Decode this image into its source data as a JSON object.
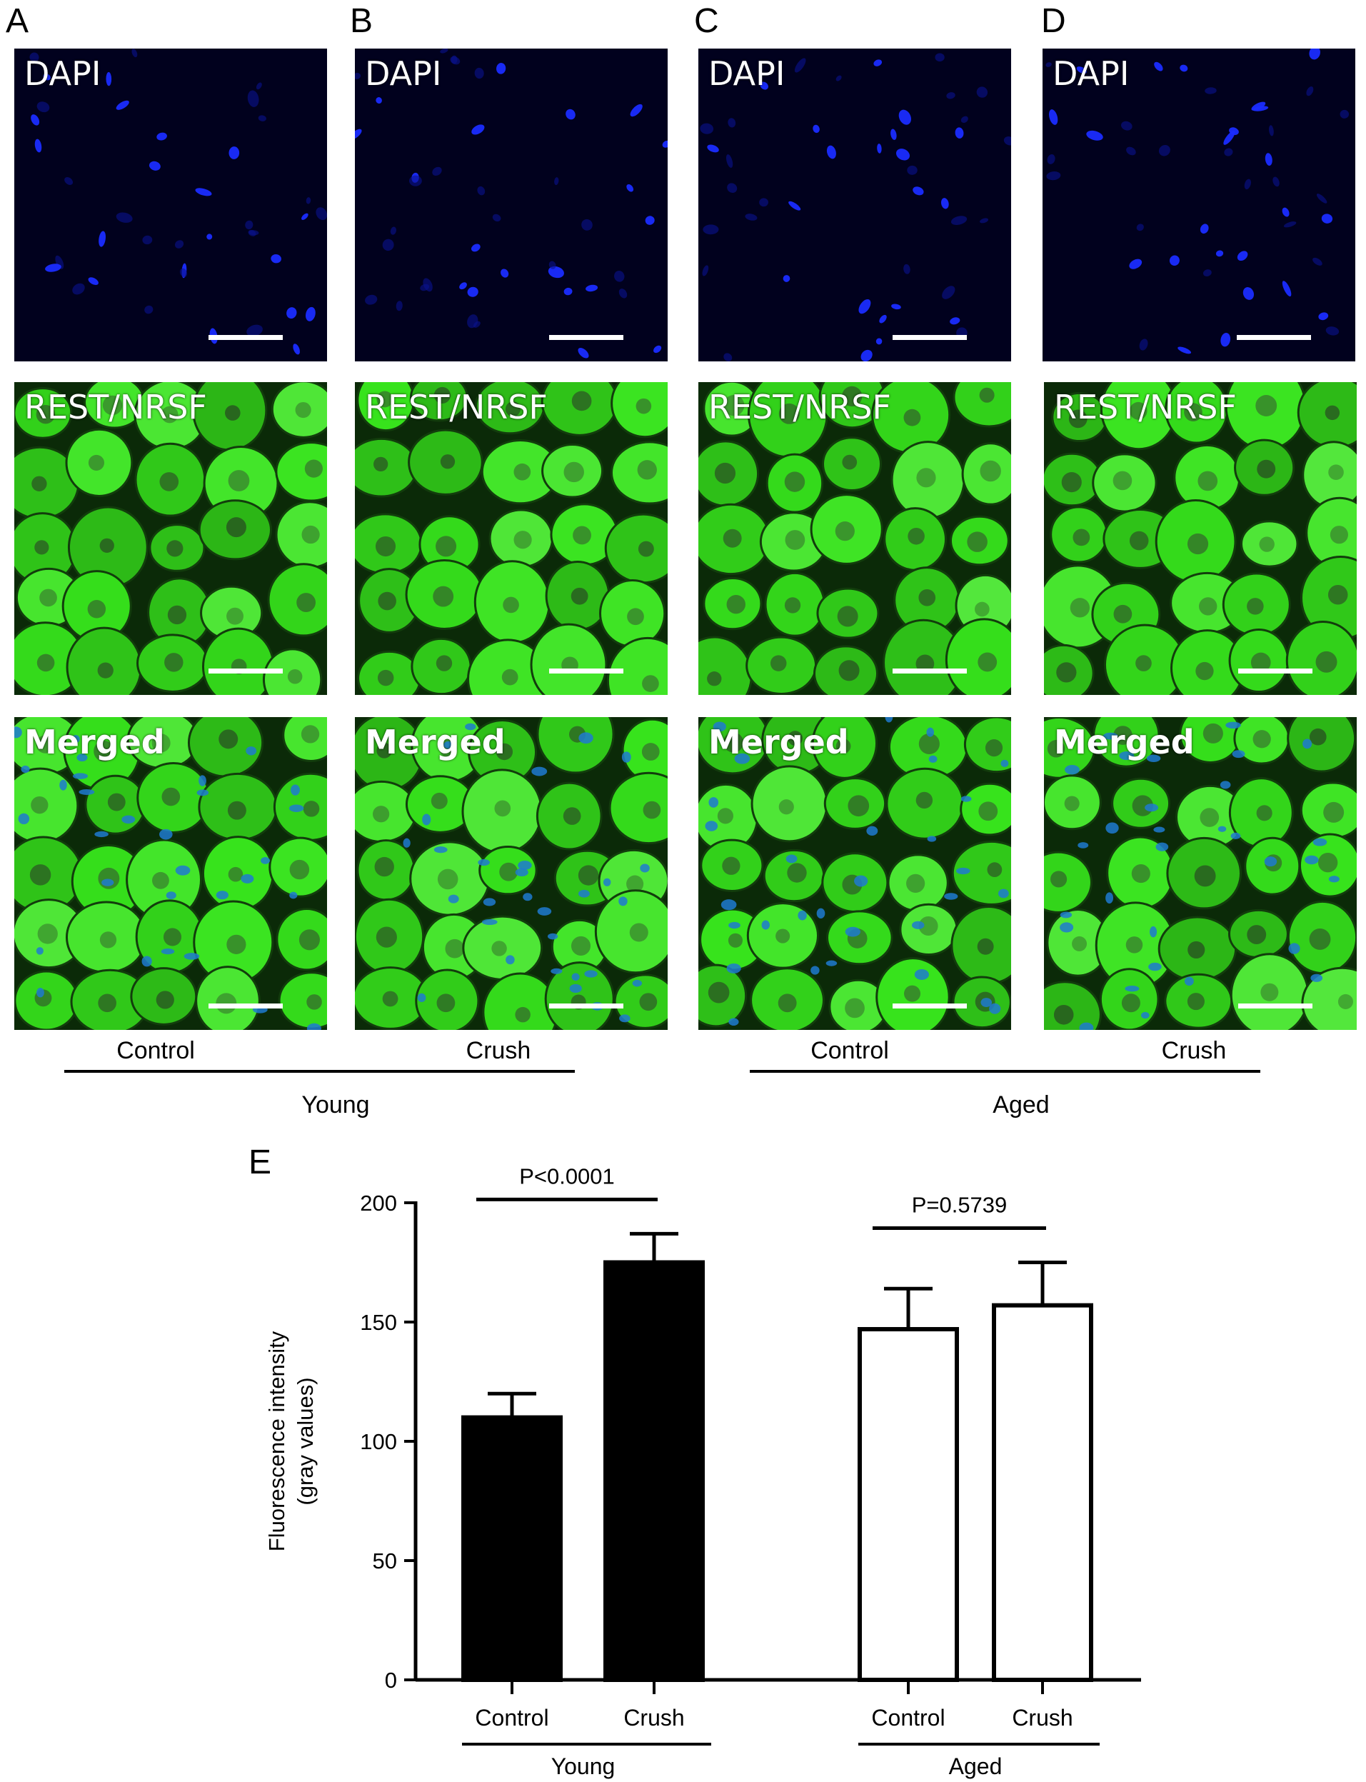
{
  "panel_letters": [
    "A",
    "B",
    "C",
    "D",
    "E"
  ],
  "micrograph_labels": {
    "dapi": "DAPI",
    "rest": "REST/NRSF",
    "merged": "Merged"
  },
  "columns": [
    {
      "letter": "A",
      "condition": "Control",
      "group": "Young"
    },
    {
      "letter": "B",
      "condition": "Crush",
      "group": "Young"
    },
    {
      "letter": "C",
      "condition": "Control",
      "group": "Aged"
    },
    {
      "letter": "D",
      "condition": "Crush",
      "group": "Aged"
    }
  ],
  "micrograph_groups": [
    "Young",
    "Aged"
  ],
  "colors": {
    "dapi_background": "#01011e",
    "dapi_nuclei": "#1a2cff",
    "rest_green": "#2fd61a",
    "rest_dark": "#0b2a08",
    "merged_nuclei": "#1e7ad0",
    "bar_young": "#000000",
    "bar_aged": "#ffffff"
  },
  "chart_data": {
    "type": "bar",
    "ylabel": "Fluorescence intensity\n(gray values)",
    "ylabel_lines": [
      "Fluorescence intensity",
      "(gray values)"
    ],
    "ylim": [
      0,
      200
    ],
    "yticks": [
      0,
      50,
      100,
      150,
      200
    ],
    "categories": [
      "Control",
      "Crush",
      "Control",
      "Crush"
    ],
    "groups": [
      "Young",
      "Aged"
    ],
    "series": [
      {
        "group": "Young",
        "category": "Control",
        "value": 110,
        "error": 10,
        "fill": "#000000"
      },
      {
        "group": "Young",
        "category": "Crush",
        "value": 175,
        "error": 12,
        "fill": "#000000"
      },
      {
        "group": "Aged",
        "category": "Control",
        "value": 147,
        "error": 17,
        "fill": "#ffffff"
      },
      {
        "group": "Aged",
        "category": "Crush",
        "value": 157,
        "error": 18,
        "fill": "#ffffff"
      }
    ],
    "annotations": [
      {
        "text": "P<0.0001",
        "between": [
          0,
          1
        ]
      },
      {
        "text": "P=0.5739",
        "between": [
          2,
          3
        ]
      }
    ]
  }
}
